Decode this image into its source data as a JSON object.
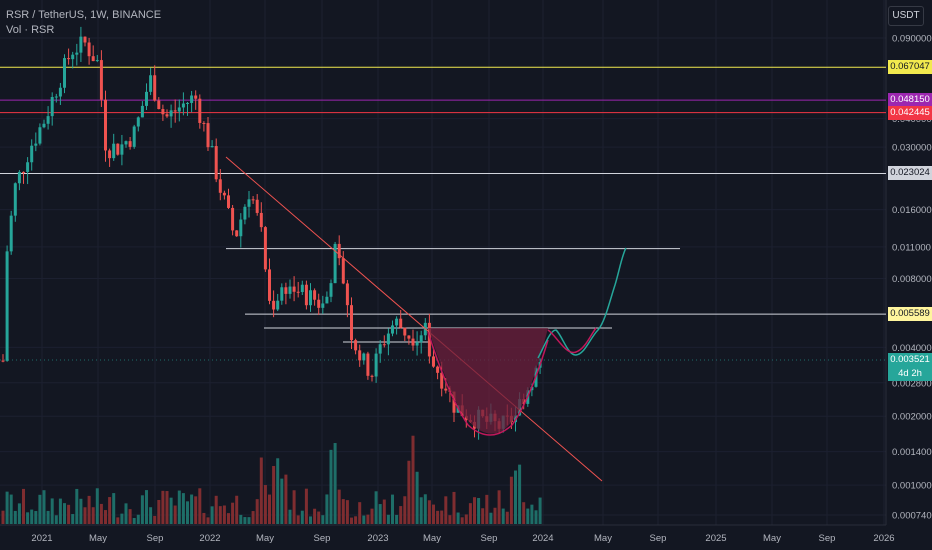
{
  "legend": {
    "symbol_line": "RSR / TetherUS, 1W, BINANCE",
    "volume_line": "Vol · RSR"
  },
  "axis": {
    "currency_label": "USDT"
  },
  "chart_data": {
    "type": "candlestick",
    "scale": "log",
    "x_ticks": [
      "2021",
      "May",
      "Sep",
      "2022",
      "May",
      "Sep",
      "2023",
      "May",
      "Sep",
      "2024",
      "May",
      "Sep",
      "2025",
      "May",
      "Sep",
      "2026"
    ],
    "y_ticks": [
      "0.090000",
      "0.040000",
      "0.030000",
      "0.016000",
      "0.011000",
      "0.008000",
      "0.004000",
      "0.002800",
      "0.002000",
      "0.001400",
      "0.001000",
      "0.000740"
    ],
    "price_labels": [
      {
        "name": "line-yellow",
        "text": "0.067047",
        "value": 0.067047,
        "bg": "#f2e94e",
        "fg": "#131722"
      },
      {
        "name": "line-purple",
        "text": "0.048150",
        "value": 0.04815,
        "bg": "#9c27b0",
        "fg": "#ffffff"
      },
      {
        "name": "line-red",
        "text": "0.042445",
        "value": 0.042445,
        "bg": "#f23645",
        "fg": "#ffffff"
      },
      {
        "name": "line-white-1",
        "text": "0.023024",
        "value": 0.023024,
        "bg": "#d1d4dc",
        "fg": "#131722"
      },
      {
        "name": "line-white-2",
        "text": "0.005589",
        "value": 0.005589,
        "bg": "#fff59d",
        "fg": "#131722"
      },
      {
        "name": "last-price",
        "text": "0.003521",
        "value": 0.003521,
        "bg": "#26a69a",
        "fg": "#ffffff"
      }
    ],
    "countdown": "4d 2h",
    "colors": {
      "up": "#26a69a",
      "down": "#ef5350",
      "vol_up": "#1e6e68",
      "vol_down": "#7f2d30",
      "trendline": "#ef5350",
      "cup_fill": "#6d1f3c",
      "cup_stroke": "#c2185b",
      "projection": "#26a69a"
    }
  }
}
